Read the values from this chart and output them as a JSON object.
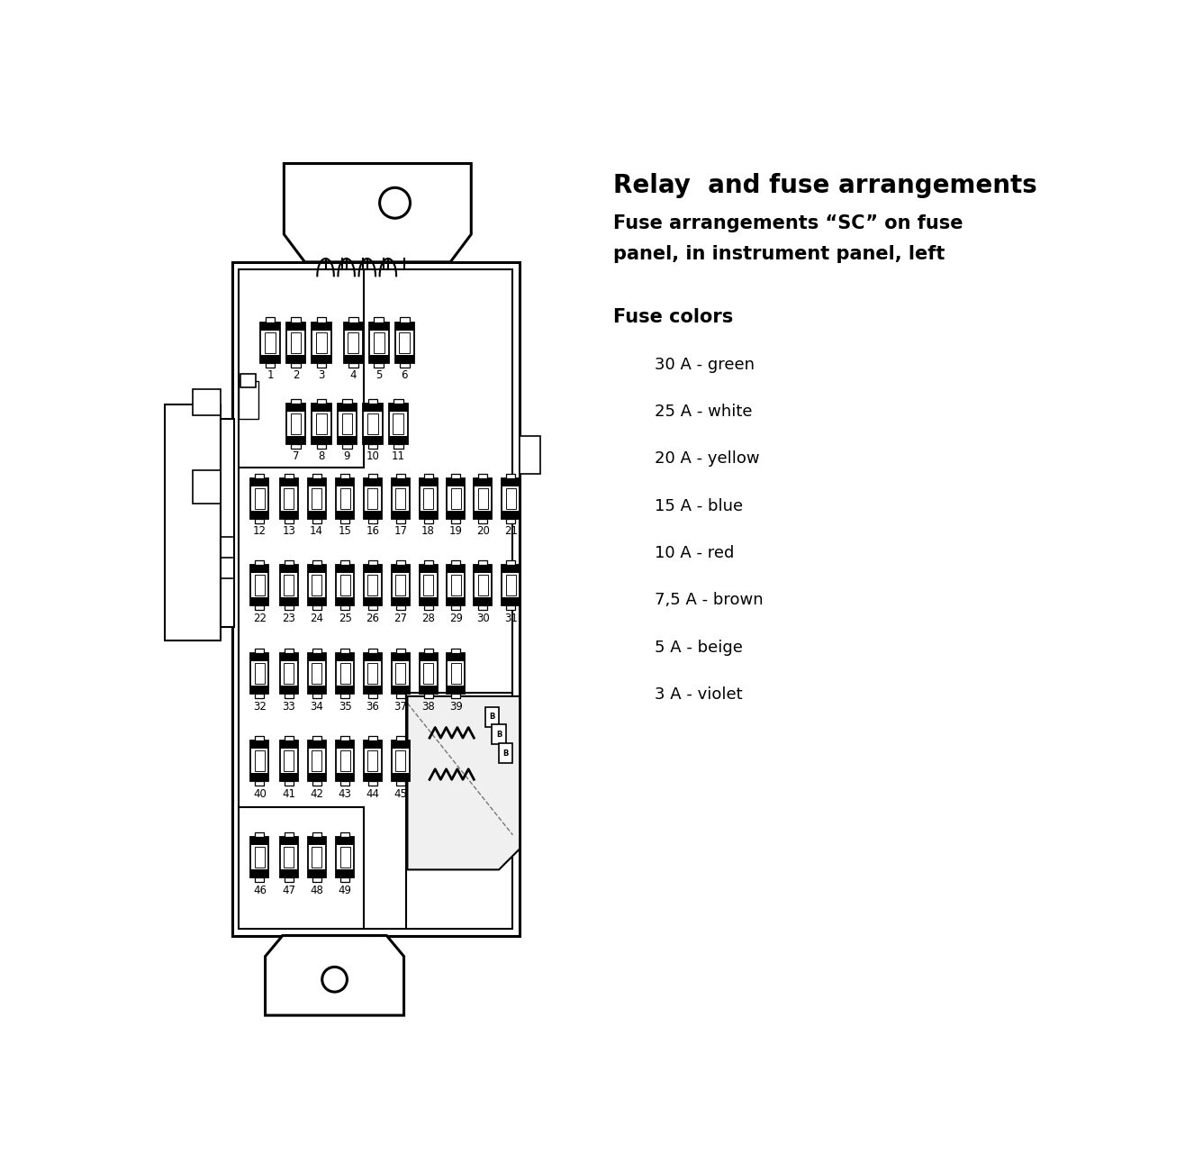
{
  "title_line1": "Relay  and fuse arrangements",
  "title_line2": "Fuse arrangements “SC” on fuse",
  "title_line3": "panel, in instrument panel, left",
  "fuse_colors_title": "Fuse colors",
  "fuse_colors": [
    "30 A - green",
    "25 A - white",
    "20 A - yellow",
    "15 A - blue",
    "10 A - red",
    "7,5 A - brown",
    "5 A - beige",
    "3 A - violet"
  ],
  "bg_color": "#ffffff",
  "row1_fuses": [
    1,
    2,
    3,
    4,
    5,
    6
  ],
  "row2_fuses": [
    7,
    8,
    9,
    10,
    11
  ],
  "row3_fuses": [
    12,
    13,
    14,
    15,
    16,
    17,
    18,
    19,
    20,
    21
  ],
  "row4_fuses": [
    22,
    23,
    24,
    25,
    26,
    27,
    28,
    29,
    30,
    31
  ],
  "row5_fuses": [
    32,
    33,
    34,
    35,
    36,
    37,
    38,
    39
  ],
  "row6_fuses": [
    40,
    41,
    42,
    43,
    44,
    45
  ],
  "row7_fuses": [
    46,
    47,
    48,
    49
  ]
}
